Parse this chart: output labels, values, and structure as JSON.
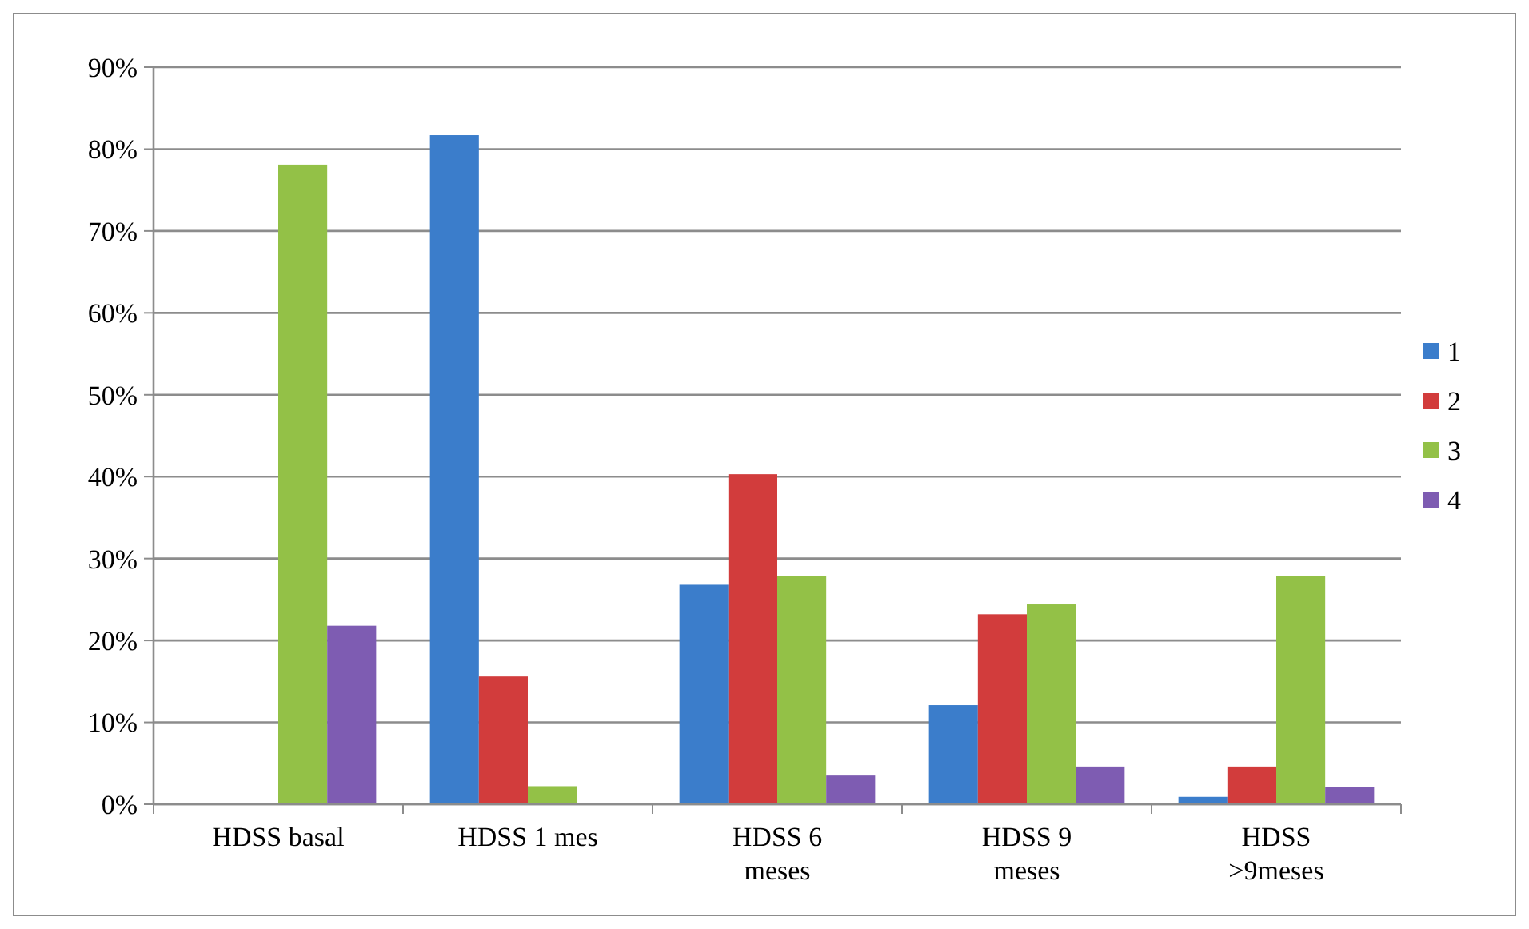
{
  "chart_data": {
    "type": "bar",
    "categories": [
      "HDSS basal",
      "HDSS 1 mes",
      "HDSS 6 meses",
      "HDSS 9 meses",
      "HDSS >9meses"
    ],
    "series": [
      {
        "name": "1",
        "color": "#3b7dcb",
        "values": [
          0,
          81.7,
          26.8,
          12.1,
          0.9
        ]
      },
      {
        "name": "2",
        "color": "#d23c3c",
        "values": [
          0,
          15.6,
          40.3,
          23.2,
          4.6
        ]
      },
      {
        "name": "3",
        "color": "#93c147",
        "values": [
          78.1,
          2.2,
          27.9,
          24.4,
          27.9
        ]
      },
      {
        "name": "4",
        "color": "#7e5cb2",
        "values": [
          21.8,
          0,
          3.5,
          4.6,
          2.1
        ]
      }
    ],
    "ylim": [
      0,
      90
    ],
    "yticks": [
      {
        "value": 0,
        "label": "0%"
      },
      {
        "value": 10,
        "label": "10%"
      },
      {
        "value": 20,
        "label": "20%"
      },
      {
        "value": 30,
        "label": "30%"
      },
      {
        "value": 40,
        "label": "40%"
      },
      {
        "value": 50,
        "label": "50%"
      },
      {
        "value": 60,
        "label": "60%"
      },
      {
        "value": 70,
        "label": "70%"
      },
      {
        "value": 80,
        "label": "80%"
      },
      {
        "value": 90,
        "label": "90%"
      }
    ],
    "grid": "y",
    "legend": "right"
  }
}
